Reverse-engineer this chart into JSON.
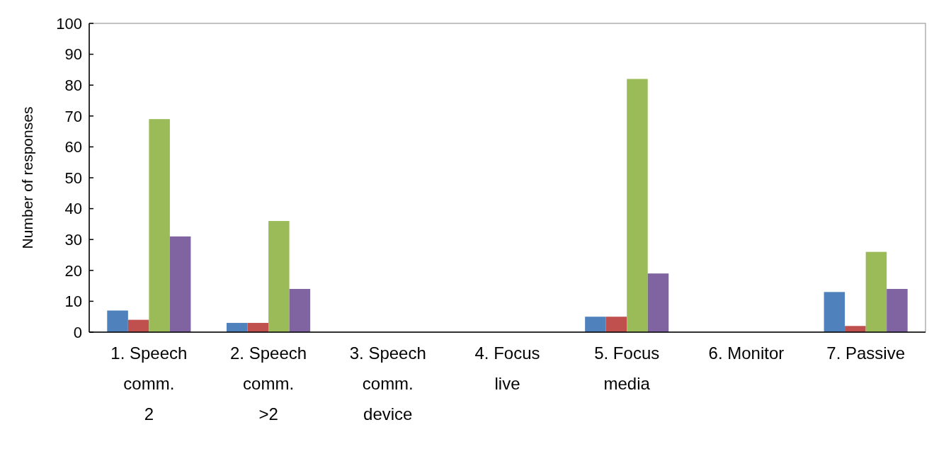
{
  "chart_data": {
    "type": "bar",
    "ylabel": "Number of responses",
    "categories": [
      "1. Speech comm. 2",
      "2. Speech comm. >2",
      "3. Speech comm. device",
      "4. Focus live",
      "5. Focus media",
      "6. Monitor",
      "7. Passive"
    ],
    "series": [
      {
        "color": "#4f81bd",
        "values": [
          7,
          3,
          0,
          0,
          5,
          0,
          13
        ]
      },
      {
        "color": "#c0504d",
        "values": [
          4,
          3,
          0,
          0,
          5,
          0,
          2
        ]
      },
      {
        "color": "#9bbb59",
        "values": [
          69,
          36,
          0,
          0,
          82,
          0,
          26
        ]
      },
      {
        "color": "#8064a2",
        "values": [
          31,
          14,
          0,
          0,
          19,
          0,
          14
        ]
      }
    ],
    "ylim": [
      0,
      100
    ],
    "yticks": [
      0,
      10,
      20,
      30,
      40,
      50,
      60,
      70,
      80,
      90,
      100
    ],
    "grid": false
  }
}
